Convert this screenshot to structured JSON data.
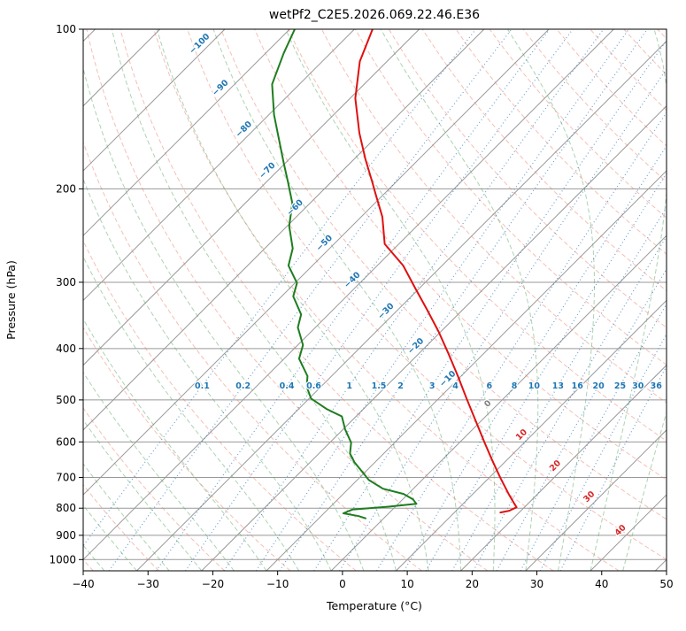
{
  "title": "wetPf2_C2E5.2026.069.22.46.E36",
  "axes": {
    "x_label": "Temperature (°C)",
    "y_label": "Pressure (hPa)",
    "x_ticks": [
      -40,
      -30,
      -20,
      -10,
      0,
      10,
      20,
      30,
      40,
      50
    ],
    "y_ticks": [
      100,
      200,
      300,
      400,
      500,
      600,
      700,
      800,
      900,
      1000
    ]
  },
  "style": {
    "grid_color": "#999999",
    "dry_adiabat_color": "rgba(231,116,96,0.45)",
    "moist_adiabat_color": "rgba(92,168,104,0.5)",
    "mixing_ratio_color": "rgba(49,119,189,0.7)",
    "temperature_color": "#e01010",
    "dewpoint_color": "#1e7d1e",
    "label_blue": "#1f77b4",
    "label_red": "#d62728",
    "label_gray": "#808080"
  },
  "chart_data": {
    "type": "line",
    "diagram": "skew-T log-p sounding",
    "title": "wetPf2_C2E5.2026.069.22.46.E36",
    "xlabel": "Temperature (°C)",
    "ylabel": "Pressure (hPa)",
    "x_range_C": [
      -40,
      50
    ],
    "pressure_range_hPa": [
      100,
      1050
    ],
    "skew": "45deg",
    "grid": "on",
    "isotherms_every_C": 10,
    "dry_adiabats_every_C": 10,
    "moist_adiabats_every_C": 5,
    "series": [
      {
        "name": "temperature",
        "color": "#e01010",
        "points_p_T": [
          [
            100,
            -77.2
          ],
          [
            115,
            -74.2
          ],
          [
            135,
            -69.2
          ],
          [
            157,
            -63.2
          ],
          [
            176,
            -58.2
          ],
          [
            194,
            -53.7
          ],
          [
            205,
            -51.2
          ],
          [
            226,
            -46.7
          ],
          [
            254,
            -42.2
          ],
          [
            279,
            -36.0
          ],
          [
            307,
            -30.8
          ],
          [
            338,
            -25.5
          ],
          [
            372,
            -20.3
          ],
          [
            410,
            -15.3
          ],
          [
            451,
            -10.5
          ],
          [
            497,
            -5.7
          ],
          [
            547,
            -0.9
          ],
          [
            602,
            3.9
          ],
          [
            650,
            7.8
          ],
          [
            702,
            11.8
          ],
          [
            752,
            15.5
          ],
          [
            782,
            17.7
          ],
          [
            797,
            18.8
          ],
          [
            809,
            18.2
          ],
          [
            815,
            17.1
          ]
        ]
      },
      {
        "name": "dewpoint",
        "color": "#1e7d1e",
        "points_p_T": [
          [
            100,
            -89.2
          ],
          [
            111,
            -87.2
          ],
          [
            127,
            -84.2
          ],
          [
            145,
            -79.2
          ],
          [
            163,
            -74.2
          ],
          [
            179,
            -70.2
          ],
          [
            194,
            -66.7
          ],
          [
            213,
            -62.7
          ],
          [
            235,
            -59.7
          ],
          [
            259,
            -55.7
          ],
          [
            279,
            -53.7
          ],
          [
            301,
            -49.7
          ],
          [
            319,
            -48.2
          ],
          [
            345,
            -44.2
          ],
          [
            365,
            -42.7
          ],
          [
            394,
            -39.2
          ],
          [
            418,
            -37.7
          ],
          [
            451,
            -33.7
          ],
          [
            472,
            -32.2
          ],
          [
            497,
            -29.7
          ],
          [
            520,
            -25.7
          ],
          [
            537,
            -22.2
          ],
          [
            568,
            -19.7
          ],
          [
            602,
            -16.7
          ],
          [
            631,
            -15.2
          ],
          [
            655,
            -13.2
          ],
          [
            681,
            -10.7
          ],
          [
            708,
            -8.2
          ],
          [
            735,
            -4.7
          ],
          [
            752,
            -0.7
          ],
          [
            770,
            1.6
          ],
          [
            785,
            2.8
          ],
          [
            795,
            -1.2
          ],
          [
            805,
            -6.2
          ],
          [
            818,
            -7.0
          ],
          [
            828,
            -4.2
          ],
          [
            836,
            -2.8
          ]
        ]
      }
    ],
    "isotherm_labels": [
      {
        "t": -100,
        "p": 109
      },
      {
        "t": -90,
        "p": 132
      },
      {
        "t": -80,
        "p": 158
      },
      {
        "t": -70,
        "p": 189
      },
      {
        "t": -60,
        "p": 222
      },
      {
        "t": -50,
        "p": 259
      },
      {
        "t": -40,
        "p": 304
      },
      {
        "t": -30,
        "p": 348
      },
      {
        "t": -20,
        "p": 405
      },
      {
        "t": -10,
        "p": 467
      },
      {
        "t": 0,
        "p": 520
      },
      {
        "t": 10,
        "p": 595
      },
      {
        "t": 20,
        "p": 681
      },
      {
        "t": 30,
        "p": 779
      },
      {
        "t": 40,
        "p": 901
      }
    ],
    "mixing_ratio_labels_g_kg": [
      0.1,
      0.2,
      0.4,
      0.6,
      1,
      1.5,
      2,
      3,
      4,
      6,
      8,
      10,
      13,
      16,
      20,
      25,
      30,
      36
    ],
    "mixing_ratio_label_pressure_hPa": 470
  }
}
